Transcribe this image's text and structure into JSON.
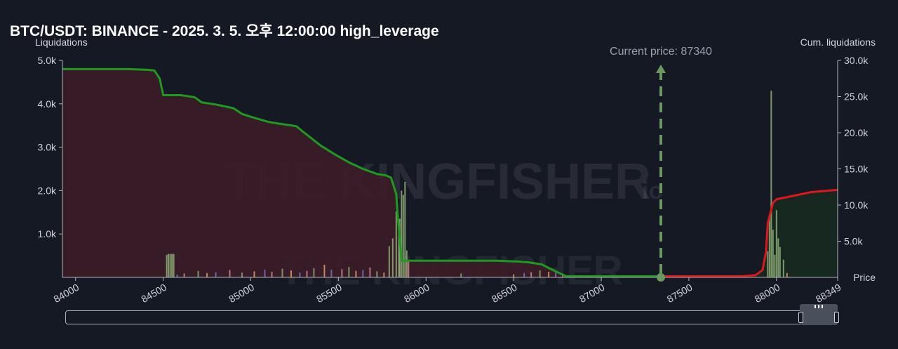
{
  "header": {
    "title": "BTC/USDT: BINANCE - 2025. 3. 5. 오후 12:00:00 high_leverage"
  },
  "watermark": {
    "text": "THE KINGFISHER",
    "suffix": "io"
  },
  "colors": {
    "background": "#151924",
    "short_side_fill": "#3b1d28",
    "long_side_fill": "#15291f",
    "cum_short_line": "#1e9a1e",
    "cum_long_line": "#e0161f",
    "current_price_line": "#6a9a5e",
    "bar_primary": "#8fae78",
    "bar_orange": "#e8a06a",
    "bar_purple": "#7b78c4",
    "bar_pink": "#d98a9a"
  },
  "scrollbar": {
    "label": "range-slider",
    "grip_icon": "grip-icon"
  },
  "chart_data": {
    "type": "area",
    "title": "BTC/USDT: BINANCE - 2025. 3. 5. 오후 12:00:00 high_leverage",
    "xlabel": "Price",
    "ylabel_left": "Liquidations",
    "ylabel_right": "Cum. liquidations",
    "xlim": [
      83925,
      88349
    ],
    "ylim_left": [
      0,
      5000
    ],
    "ylim_right": [
      0,
      30000
    ],
    "x_ticks": [
      "84000",
      "84500",
      "85000",
      "85500",
      "86000",
      "86500",
      "87000",
      "87500",
      "88000",
      "88349"
    ],
    "y_left_ticks": [
      "1.0k",
      "2.0k",
      "3.0k",
      "4.0k",
      "5.0k"
    ],
    "y_right_ticks": [
      "5.0k",
      "10.0k",
      "15.0k",
      "20.0k",
      "25.0k",
      "30.0k"
    ],
    "current_price": {
      "label": "Current price: 87340",
      "value": 87340
    },
    "grid": false,
    "series": [
      {
        "name": "Cum. liquidations",
        "axis": "right",
        "side": "short",
        "x": [
          83925,
          84100,
          84300,
          84410,
          84450,
          84480,
          84500,
          84600,
          84680,
          84720,
          84800,
          84900,
          84950,
          85000,
          85100,
          85150,
          85260,
          85300,
          85400,
          85480,
          85560,
          85640,
          85720,
          85770,
          85800,
          85830,
          85840,
          85850,
          85860,
          86000,
          86200,
          86400,
          86520,
          86580,
          86660,
          86700,
          86760,
          86800,
          87000,
          87340
        ],
        "values": [
          28800,
          28800,
          28800,
          28700,
          28600,
          27500,
          25200,
          25200,
          24900,
          24200,
          23900,
          23400,
          22600,
          22200,
          21500,
          21300,
          20900,
          20100,
          18200,
          17000,
          15900,
          15000,
          14300,
          14100,
          13800,
          11500,
          8000,
          5500,
          2300,
          2300,
          2300,
          2300,
          2200,
          2100,
          1800,
          1300,
          600,
          150,
          150,
          150
        ]
      },
      {
        "name": "Cum. liquidations",
        "axis": "right",
        "side": "long",
        "x": [
          87340,
          87800,
          87880,
          87920,
          87940,
          87950,
          87980,
          88000,
          88100,
          88200,
          88349
        ],
        "values": [
          150,
          150,
          300,
          1000,
          3500,
          7500,
          10300,
          10800,
          11300,
          11800,
          12100
        ]
      },
      {
        "name": "Liquidations",
        "axis": "left",
        "x": [
          84520,
          84530,
          84540,
          84550,
          84560,
          84580,
          84620,
          84700,
          84750,
          84800,
          84880,
          84950,
          85020,
          85080,
          85120,
          85180,
          85230,
          85280,
          85320,
          85360,
          85420,
          85460,
          85520,
          85560,
          85600,
          85640,
          85680,
          85720,
          85760,
          85790,
          85810,
          85830,
          85845,
          85850,
          85860,
          85870,
          85880,
          85890,
          85900,
          86200,
          86500,
          86560,
          86600,
          86650,
          86700,
          86740,
          86780,
          87950,
          87960,
          87970,
          87980,
          87990,
          88000,
          88010,
          88020,
          88040,
          88060
        ],
        "values": [
          520,
          540,
          540,
          540,
          540,
          60,
          90,
          150,
          100,
          120,
          170,
          110,
          140,
          180,
          130,
          200,
          160,
          110,
          150,
          210,
          290,
          180,
          190,
          240,
          150,
          170,
          230,
          140,
          110,
          720,
          900,
          1520,
          1100,
          1350,
          2000,
          1900,
          2200,
          620,
          360,
          90,
          70,
          100,
          120,
          160,
          130,
          110,
          90,
          600,
          1400,
          4300,
          1100,
          520,
          1550,
          900,
          700,
          410,
          100
        ]
      }
    ]
  }
}
